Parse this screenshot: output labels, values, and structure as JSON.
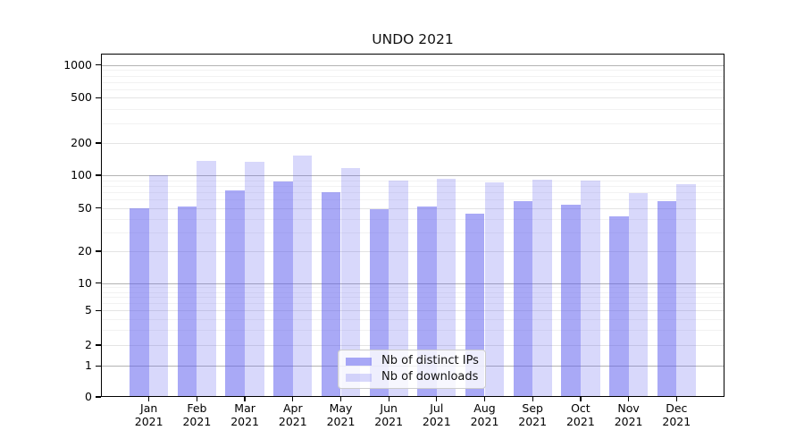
{
  "figure": {
    "title": "UNDO 2021"
  },
  "chart_data": {
    "type": "bar",
    "title": "UNDO 2021",
    "categories": [
      "Jan 2021",
      "Feb 2021",
      "Mar 2021",
      "Apr 2021",
      "May 2021",
      "Jun 2021",
      "Jul 2021",
      "Aug 2021",
      "Sep 2021",
      "Oct 2021",
      "Nov 2021",
      "Dec 2021"
    ],
    "month_labels": [
      "Jan",
      "Feb",
      "Mar",
      "Apr",
      "May",
      "Jun",
      "Jul",
      "Aug",
      "Sep",
      "Oct",
      "Nov",
      "Dec"
    ],
    "year_label": "2021",
    "series": [
      {
        "name": "Nb of distinct IPs",
        "color": "rgba(92,92,238,0.53)",
        "values": [
          50,
          52,
          73,
          88,
          70,
          49,
          52,
          44,
          58,
          54,
          42,
          58
        ]
      },
      {
        "name": "Nb of downloads",
        "color": "rgba(92,92,238,0.24)",
        "values": [
          100,
          136,
          133,
          152,
          116,
          90,
          93,
          86,
          91,
          90,
          68,
          83
        ]
      }
    ],
    "y_axis": {
      "scale": "log",
      "ticks": [
        0,
        1,
        2,
        5,
        10,
        20,
        50,
        100,
        200,
        500,
        1000
      ],
      "power_of_ten_gridline_color": "#b3b3b3",
      "labeled_gridline_color": "#e4e4e4",
      "minor_gridline_color": "#f2f2f2"
    },
    "grid": true,
    "legend_position": "lower center, inside plot",
    "bar_base_color": "#5c5cee"
  }
}
